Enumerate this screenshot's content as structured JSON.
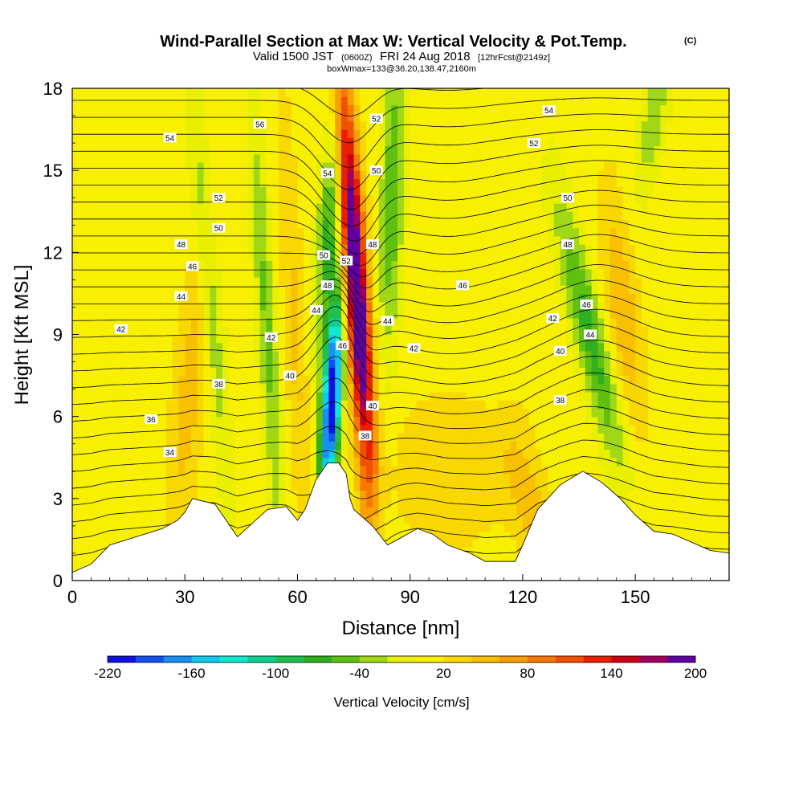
{
  "header": {
    "title": "Wind-Parallel Section at Max W: Vertical Velocity & Pot.Temp.",
    "title_mark": "(C)",
    "valid_prefix": "Valid 1500 JST",
    "valid_utc": "(0600Z)",
    "valid_date": "FRI 24 Aug 2018",
    "valid_fcst": "[12hrFcst@2149z]",
    "box_info": "boxWmax=133@36.20,138.47,2160m"
  },
  "chart_data": {
    "type": "heatmap",
    "xlabel": "Distance [nm]",
    "ylabel": "Height [Kft MSL]",
    "xlim": [
      0,
      175
    ],
    "ylim": [
      0,
      18
    ],
    "x_ticks": [
      0,
      30,
      60,
      90,
      120,
      150
    ],
    "y_ticks": [
      0,
      3,
      6,
      9,
      12,
      15,
      18
    ],
    "shading_variable": "Vertical Velocity [cm/s]",
    "contour_variable": "Potential temperature",
    "colorbar": {
      "label": "Vertical Velocity [cm/s]",
      "tick_labels": [
        "-220",
        "-160",
        "-100",
        "-40",
        "20",
        "80",
        "140",
        "200"
      ],
      "tick_values": [
        -220,
        -160,
        -100,
        -40,
        20,
        80,
        140,
        200
      ],
      "range": [
        -220,
        200
      ],
      "interval": 20,
      "colors": [
        "#1010e0",
        "#1450f0",
        "#1890f0",
        "#10c8f0",
        "#10e8d0",
        "#10d090",
        "#20c050",
        "#30b020",
        "#60c010",
        "#a0d818",
        "#e8f000",
        "#f8f000",
        "#f8d800",
        "#f8c000",
        "#f8a000",
        "#f87800",
        "#f05000",
        "#e82000",
        "#c80018",
        "#a00060",
        "#6000a0"
      ]
    },
    "terrain_profile": [
      [
        0,
        0.3
      ],
      [
        5,
        0.6
      ],
      [
        10,
        1.3
      ],
      [
        17,
        1.6
      ],
      [
        24,
        1.9
      ],
      [
        28,
        2.2
      ],
      [
        30,
        2.5
      ],
      [
        32,
        3.0
      ],
      [
        38,
        2.8
      ],
      [
        44,
        1.6
      ],
      [
        48,
        2.1
      ],
      [
        52,
        2.6
      ],
      [
        57,
        2.7
      ],
      [
        60,
        2.2
      ],
      [
        62,
        2.6
      ],
      [
        65,
        3.7
      ],
      [
        68,
        4.3
      ],
      [
        71,
        4.3
      ],
      [
        73,
        3.9
      ],
      [
        74,
        3.0
      ],
      [
        75,
        2.6
      ],
      [
        80,
        2.0
      ],
      [
        84,
        1.3
      ],
      [
        88,
        1.6
      ],
      [
        92,
        1.9
      ],
      [
        96,
        1.7
      ],
      [
        100,
        1.3
      ],
      [
        106,
        1.0
      ],
      [
        110,
        0.7
      ],
      [
        118,
        0.7
      ],
      [
        120,
        1.3
      ],
      [
        124,
        2.6
      ],
      [
        130,
        3.5
      ],
      [
        136,
        4.0
      ],
      [
        141,
        3.6
      ],
      [
        146,
        3.0
      ],
      [
        150,
        2.4
      ],
      [
        155,
        1.8
      ],
      [
        160,
        1.7
      ],
      [
        165,
        1.4
      ],
      [
        170,
        1.1
      ],
      [
        175,
        1.0
      ]
    ],
    "updraft_max_location": {
      "x": 75,
      "y": 15,
      "w": 200
    },
    "downdraft_min_location": {
      "x": 71,
      "y": 6.5,
      "w": -220
    },
    "theta_contour_labels": [
      {
        "label": "54",
        "x": 26,
        "y": 16.2
      },
      {
        "label": "56",
        "x": 50,
        "y": 16.7
      },
      {
        "label": "52",
        "x": 39,
        "y": 14.0
      },
      {
        "label": "50",
        "x": 39,
        "y": 12.9
      },
      {
        "label": "48",
        "x": 29,
        "y": 12.3
      },
      {
        "label": "46",
        "x": 32,
        "y": 11.5
      },
      {
        "label": "44",
        "x": 29,
        "y": 10.4
      },
      {
        "label": "42",
        "x": 13,
        "y": 9.2
      },
      {
        "label": "42",
        "x": 53,
        "y": 8.9
      },
      {
        "label": "40",
        "x": 58,
        "y": 7.5
      },
      {
        "label": "38",
        "x": 39,
        "y": 7.2
      },
      {
        "label": "36",
        "x": 21,
        "y": 5.9
      },
      {
        "label": "34",
        "x": 26,
        "y": 4.7
      },
      {
        "label": "54",
        "x": 68,
        "y": 14.9
      },
      {
        "label": "50",
        "x": 67,
        "y": 11.9
      },
      {
        "label": "48",
        "x": 68,
        "y": 10.8
      },
      {
        "label": "44",
        "x": 65,
        "y": 9.9
      },
      {
        "label": "46",
        "x": 72,
        "y": 8.6
      },
      {
        "label": "52",
        "x": 73,
        "y": 11.7
      },
      {
        "label": "52",
        "x": 81,
        "y": 16.9
      },
      {
        "label": "50",
        "x": 81,
        "y": 15.0
      },
      {
        "label": "48",
        "x": 80,
        "y": 12.3
      },
      {
        "label": "44",
        "x": 84,
        "y": 9.5
      },
      {
        "label": "42",
        "x": 91,
        "y": 8.5
      },
      {
        "label": "40",
        "x": 80,
        "y": 6.4
      },
      {
        "label": "38",
        "x": 78,
        "y": 5.3
      },
      {
        "label": "46",
        "x": 104,
        "y": 10.8
      },
      {
        "label": "54",
        "x": 127,
        "y": 17.2
      },
      {
        "label": "52",
        "x": 123,
        "y": 16.0
      },
      {
        "label": "50",
        "x": 132,
        "y": 14.0
      },
      {
        "label": "48",
        "x": 132,
        "y": 12.3
      },
      {
        "label": "46",
        "x": 137,
        "y": 10.1
      },
      {
        "label": "44",
        "x": 138,
        "y": 9.0
      },
      {
        "label": "42",
        "x": 128,
        "y": 9.6
      },
      {
        "label": "40",
        "x": 130,
        "y": 8.4
      },
      {
        "label": "38",
        "x": 130,
        "y": 6.6
      }
    ]
  }
}
